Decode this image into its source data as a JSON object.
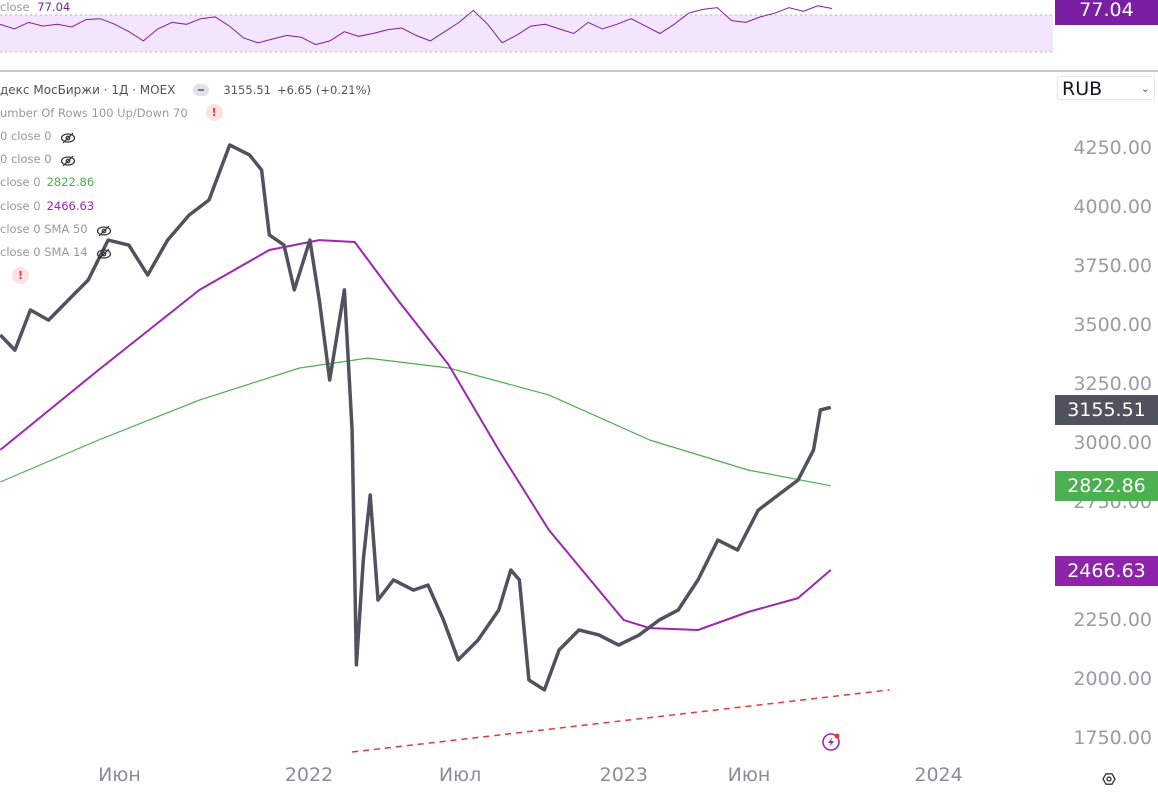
{
  "chart_data": {
    "type": "line",
    "symbol_title": "декс МосБиржи · 1Д · MOEX",
    "last_price": "3155.51",
    "change": "+6.65 (+0.21%)",
    "currency": "RUB",
    "y_axis_ticks": [
      "4250.00",
      "4000.00",
      "3750.00",
      "3500.00",
      "3250.00",
      "3000.00",
      "2750.00",
      "2250.00",
      "2000.00",
      "1750.00"
    ],
    "ylim": [
      1700,
      4300
    ],
    "x_axis_ticks": [
      {
        "label": "Июн",
        "date": "2021-06-01"
      },
      {
        "label": "2022",
        "date": "2022-01-01"
      },
      {
        "label": "Июл",
        "date": "2022-07-01"
      },
      {
        "label": "2023",
        "date": "2023-01-01"
      },
      {
        "label": "Июн",
        "date": "2023-06-01"
      },
      {
        "label": "2024",
        "date": "2024-01-01"
      }
    ],
    "price_series": [
      [
        "2021-01-08",
        3462
      ],
      [
        "2021-01-25",
        3398
      ],
      [
        "2021-02-12",
        3568
      ],
      [
        "2021-03-05",
        3525
      ],
      [
        "2021-03-28",
        3610
      ],
      [
        "2021-04-20",
        3695
      ],
      [
        "2021-05-13",
        3864
      ],
      [
        "2021-06-06",
        3843
      ],
      [
        "2021-06-28",
        3716
      ],
      [
        "2021-07-21",
        3864
      ],
      [
        "2021-08-15",
        3970
      ],
      [
        "2021-09-07",
        4034
      ],
      [
        "2021-10-01",
        4267
      ],
      [
        "2021-10-24",
        4225
      ],
      [
        "2021-11-07",
        4161
      ],
      [
        "2021-11-16",
        3886
      ],
      [
        "2021-12-03",
        3843
      ],
      [
        "2021-12-15",
        3653
      ],
      [
        "2022-01-02",
        3864
      ],
      [
        "2022-01-13",
        3610
      ],
      [
        "2022-01-25",
        3271
      ],
      [
        "2022-02-11",
        3653
      ],
      [
        "2022-02-20",
        3059
      ],
      [
        "2022-02-25",
        2064
      ],
      [
        "2022-03-05",
        2508
      ],
      [
        "2022-03-13",
        2784
      ],
      [
        "2022-03-22",
        2339
      ],
      [
        "2022-04-09",
        2424
      ],
      [
        "2022-05-02",
        2381
      ],
      [
        "2022-05-19",
        2402
      ],
      [
        "2022-06-06",
        2254
      ],
      [
        "2022-06-23",
        2085
      ],
      [
        "2022-07-16",
        2169
      ],
      [
        "2022-08-09",
        2296
      ],
      [
        "2022-08-23",
        2466
      ],
      [
        "2022-09-02",
        2424
      ],
      [
        "2022-09-13",
        2000
      ],
      [
        "2022-10-01",
        1958
      ],
      [
        "2022-10-18",
        2127
      ],
      [
        "2022-11-10",
        2212
      ],
      [
        "2022-12-03",
        2191
      ],
      [
        "2022-12-26",
        2148
      ],
      [
        "2023-01-19",
        2191
      ],
      [
        "2023-02-11",
        2254
      ],
      [
        "2023-03-05",
        2296
      ],
      [
        "2023-03-28",
        2424
      ],
      [
        "2023-04-20",
        2593
      ],
      [
        "2023-05-13",
        2551
      ],
      [
        "2023-06-06",
        2720
      ],
      [
        "2023-06-29",
        2784
      ],
      [
        "2023-07-22",
        2847
      ],
      [
        "2023-08-09",
        2974
      ],
      [
        "2023-08-17",
        3144
      ],
      [
        "2023-08-29",
        3155.51
      ]
    ],
    "sma_green": {
      "color": "#4caf50",
      "last": "2822.86",
      "points": [
        [
          "2021-01-08",
          2839
        ],
        [
          "2021-05-02",
          3017
        ],
        [
          "2021-08-27",
          3186
        ],
        [
          "2021-12-21",
          3322
        ],
        [
          "2022-03-10",
          3364
        ],
        [
          "2022-06-12",
          3322
        ],
        [
          "2022-10-06",
          3208
        ],
        [
          "2023-01-31",
          3017
        ],
        [
          "2023-05-25",
          2890
        ],
        [
          "2023-08-29",
          2822.86
        ]
      ]
    },
    "sma_purple": {
      "color": "#9c27b0",
      "last": "2466.63",
      "points": [
        [
          "2021-01-08",
          2975
        ],
        [
          "2021-05-02",
          3314
        ],
        [
          "2021-08-27",
          3653
        ],
        [
          "2021-11-16",
          3822
        ],
        [
          "2022-01-13",
          3864
        ],
        [
          "2022-02-23",
          3856
        ],
        [
          "2022-04-14",
          3610
        ],
        [
          "2022-06-12",
          3335
        ],
        [
          "2022-08-09",
          2975
        ],
        [
          "2022-10-06",
          2636
        ],
        [
          "2022-12-03",
          2381
        ],
        [
          "2023-01-01",
          2254
        ],
        [
          "2023-01-31",
          2220
        ],
        [
          "2023-03-28",
          2212
        ],
        [
          "2023-05-25",
          2288
        ],
        [
          "2023-07-22",
          2347
        ],
        [
          "2023-08-29",
          2466.63
        ]
      ]
    },
    "trendline": {
      "color": "#e53935",
      "style": "dashed",
      "points": [
        [
          "2022-02-20",
          1695
        ],
        [
          "2023-11-05",
          1958
        ]
      ]
    },
    "rsi": {
      "label": "close",
      "value": "77.04",
      "color": "#7b1fa2",
      "bands": [
        30,
        70
      ],
      "values": [
        60,
        55,
        62,
        58,
        60,
        57,
        65,
        66,
        60,
        52,
        42,
        55,
        62,
        60,
        66,
        68,
        58,
        45,
        40,
        44,
        48,
        46,
        38,
        42,
        52,
        47,
        50,
        54,
        56,
        48,
        42,
        52,
        62,
        75,
        60,
        40,
        48,
        58,
        60,
        55,
        50,
        62,
        55,
        60,
        66,
        58,
        50,
        60,
        72,
        76,
        78,
        64,
        62,
        68,
        72,
        78,
        74,
        80,
        77.04
      ]
    },
    "grid": false
  },
  "legend": {
    "rows": [
      {
        "text": "umber Of Rows 100 Up/Down 70",
        "warn": true
      },
      {
        "text": "0 close 0",
        "hidden": true
      },
      {
        "text": "0 close 0",
        "hidden": true
      },
      {
        "text": "close 0",
        "value": "2822.86",
        "color": "#4caf50"
      },
      {
        "text": "close 0",
        "value": "2466.63",
        "color": "#9c27b0"
      },
      {
        "text": "close 0 SMA 50",
        "hidden": true
      },
      {
        "text": "close 0 SMA 14",
        "hidden": true
      }
    ],
    "warn_glyph": "!"
  },
  "colors": {
    "price_line": "#50535e",
    "last_price_box": "#50535e",
    "rsi_box": "#7b1fa2"
  }
}
